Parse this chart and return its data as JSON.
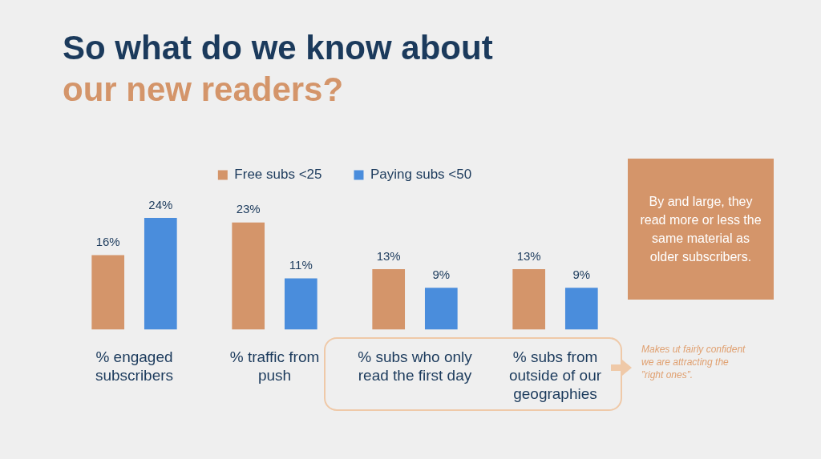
{
  "chart_data": {
    "type": "bar",
    "title": "So what do we know about",
    "subtitle": "our new readers?",
    "categories": [
      "% engaged subscribers",
      "% traffic from push",
      "% subs who only read the first day",
      "% subs from outside of our geographies"
    ],
    "series": [
      {
        "name": "Free subs <25",
        "color": "#d4956a",
        "values": [
          16,
          23,
          13,
          13
        ],
        "value_labels": [
          "16%",
          "23%",
          "13%",
          "13%"
        ]
      },
      {
        "name": "Paying subs <50",
        "color": "#4a8ddc",
        "values": [
          24,
          11,
          9,
          9
        ],
        "value_labels": [
          "24%",
          "11%",
          "9%",
          "9%"
        ]
      }
    ],
    "legend": "top",
    "grid": false,
    "annotations": [
      "By and large, they read more or less the same material as older subscribers.",
      "Makes ut fairly confident we are attracting the ”right ones”."
    ]
  }
}
